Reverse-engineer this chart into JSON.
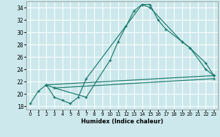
{
  "xlabel": "Humidex (Indice chaleur)",
  "bg_color": "#cce8ec",
  "grid_color": "#ffffff",
  "line_color": "#1a7a6e",
  "xlim": [
    -0.5,
    23.5
  ],
  "ylim": [
    17.5,
    35.0
  ],
  "xticks": [
    0,
    1,
    2,
    3,
    4,
    5,
    6,
    7,
    8,
    9,
    10,
    11,
    12,
    13,
    14,
    15,
    16,
    17,
    18,
    19,
    20,
    21,
    22,
    23
  ],
  "yticks": [
    18,
    20,
    22,
    24,
    26,
    28,
    30,
    32,
    34
  ],
  "line1_x": [
    0,
    1,
    2,
    3,
    4,
    5,
    6,
    7,
    14,
    15,
    19,
    20,
    22,
    23
  ],
  "line1_y": [
    18.5,
    20.5,
    21.5,
    19.5,
    19.0,
    18.5,
    19.5,
    22.5,
    34.5,
    34.0,
    28.5,
    27.5,
    24.0,
    23.0
  ],
  "line2_x": [
    2,
    3,
    7,
    10,
    11,
    12,
    13,
    14,
    15,
    16,
    17,
    19,
    20,
    22,
    23
  ],
  "line2_y": [
    21.5,
    21.0,
    19.5,
    25.5,
    28.5,
    31.0,
    33.5,
    34.5,
    34.5,
    32.0,
    30.5,
    28.5,
    27.5,
    25.0,
    23.0
  ],
  "line3_x": [
    2,
    23
  ],
  "line3_y": [
    21.5,
    23.0
  ],
  "line4_x": [
    3,
    23
  ],
  "line4_y": [
    21.0,
    22.5
  ]
}
